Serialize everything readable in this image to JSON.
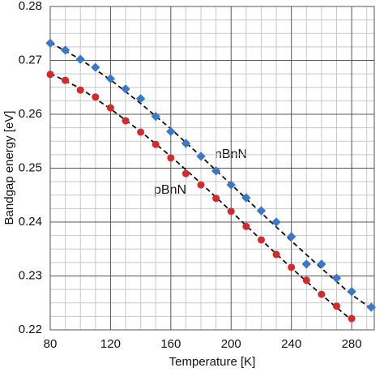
{
  "chart_data": {
    "type": "scatter",
    "x_label": "Temperature [K]",
    "y_label": "Bandgap energy [eV]",
    "xlim": [
      80,
      295
    ],
    "ylim": [
      0.22,
      0.28
    ],
    "xticks": [
      80,
      120,
      160,
      200,
      240,
      280
    ],
    "yticks": [
      0.22,
      0.23,
      0.24,
      0.25,
      0.26,
      0.27,
      0.28
    ],
    "grid": true,
    "minor_divisions": [
      4,
      4
    ],
    "series": [
      {
        "name": "nBnN",
        "color": "#3a78c8",
        "marker": "diamond",
        "x": [
          80,
          90,
          100,
          110,
          120,
          130,
          140,
          150,
          160,
          170,
          180,
          190,
          200,
          210,
          220,
          230,
          240,
          250,
          260,
          270,
          280,
          293
        ],
        "values": [
          0.2732,
          0.2719,
          0.2702,
          0.2687,
          0.2666,
          0.2647,
          0.2629,
          0.2596,
          0.2568,
          0.2546,
          0.2522,
          0.2495,
          0.2469,
          0.2445,
          0.2421,
          0.24,
          0.2373,
          0.2322,
          0.2322,
          0.2296,
          0.2271,
          0.2242
        ]
      },
      {
        "name": "pBnN",
        "color": "#d42a2a",
        "marker": "circle",
        "x": [
          80,
          90,
          100,
          110,
          120,
          130,
          140,
          150,
          160,
          170,
          180,
          190,
          200,
          210,
          220,
          230,
          240,
          250,
          260,
          270,
          280
        ],
        "values": [
          0.2674,
          0.2663,
          0.2645,
          0.2632,
          0.2612,
          0.2588,
          0.2567,
          0.2544,
          0.2519,
          0.249,
          0.2469,
          0.2444,
          0.242,
          0.2392,
          0.2367,
          0.234,
          0.2316,
          0.2292,
          0.2266,
          0.2244,
          0.2221
        ]
      }
    ],
    "fits": [
      {
        "color": "#111111",
        "x": [
          80,
          100,
          120,
          140,
          160,
          180,
          200,
          220,
          240,
          260,
          280,
          293
        ],
        "values": [
          0.2733,
          0.2702,
          0.2664,
          0.262,
          0.2573,
          0.2522,
          0.247,
          0.2417,
          0.2365,
          0.2314,
          0.2265,
          0.224
        ]
      },
      {
        "color": "#111111",
        "x": [
          80,
          100,
          120,
          140,
          160,
          180,
          200,
          220,
          240,
          260,
          280
        ],
        "values": [
          0.2676,
          0.2648,
          0.261,
          0.2568,
          0.2522,
          0.2472,
          0.242,
          0.2367,
          0.2315,
          0.2265,
          0.2218
        ]
      }
    ]
  }
}
